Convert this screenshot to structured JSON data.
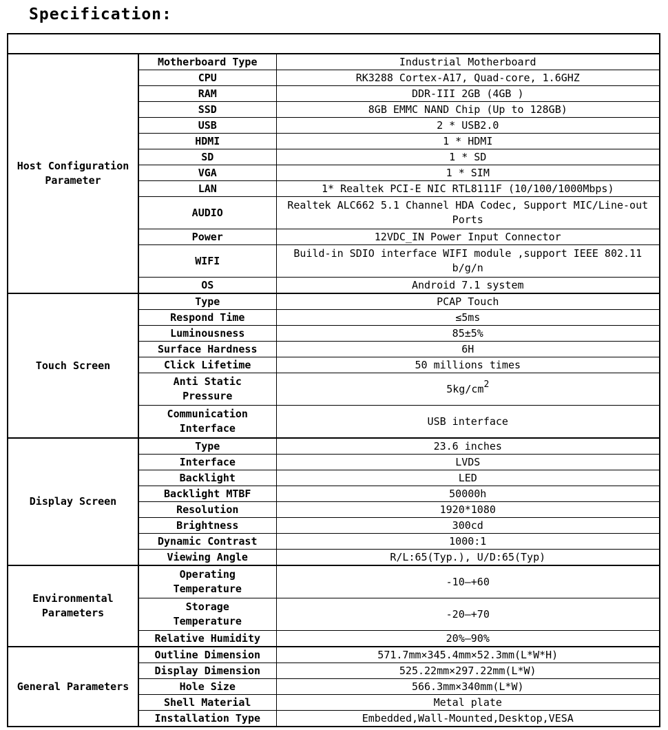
{
  "title": "Specification:",
  "table": {
    "top_row_text": "",
    "sections": [
      {
        "name": "Host Configuration\nParameter",
        "rows": [
          {
            "label": "Motherboard Type",
            "value": "Industrial Motherboard"
          },
          {
            "label": "CPU",
            "value": "RK3288 Cortex-A17, Quad-core, 1.6GHZ"
          },
          {
            "label": "RAM",
            "value": "DDR-III 2GB (4GB )"
          },
          {
            "label": "SSD",
            "value": "8GB EMMC NAND Chip (Up to 128GB)"
          },
          {
            "label": "USB",
            "value": "2 * USB2.0"
          },
          {
            "label": "HDMI",
            "value": "1 * HDMI"
          },
          {
            "label": "SD",
            "value": "1 * SD"
          },
          {
            "label": "VGA",
            "value": "1 * SIM"
          },
          {
            "label": "LAN",
            "value": "1* Realtek PCI-E NIC RTL8111F  (10/100/1000Mbps)"
          },
          {
            "label": "AUDIO",
            "value": "Realtek ALC662 5.1 Channel HDA Codec, Support MIC/Line-out\nPorts",
            "tall": true
          },
          {
            "label": "Power",
            "value": "12VDC_IN Power Input Connector"
          },
          {
            "label": "WIFI",
            "value": "Build-in SDIO interface WIFI module ,support IEEE 802.11\nb/g/n",
            "tall": true
          },
          {
            "label": "OS",
            "value": "Android 7.1 system"
          }
        ]
      },
      {
        "name": "Touch Screen",
        "rows": [
          {
            "label": "Type",
            "value": "PCAP Touch"
          },
          {
            "label": "Respond Time",
            "value": "≤5ms"
          },
          {
            "label": "Luminousness",
            "value": "85±5%"
          },
          {
            "label": "Surface Hardness",
            "value": "6H"
          },
          {
            "label": "Click Lifetime",
            "value": "50 millions times"
          },
          {
            "label": "Anti Static\nPressure",
            "value": "5kg/cm",
            "value_sup": "2",
            "tall": true
          },
          {
            "label": "Communication\nInterface",
            "value": "USB interface",
            "tall": true
          }
        ]
      },
      {
        "name": "Display Screen",
        "rows": [
          {
            "label": "Type",
            "value": "23.6 inches"
          },
          {
            "label": "Interface",
            "value": "LVDS"
          },
          {
            "label": "Backlight",
            "value": "LED"
          },
          {
            "label": "Backlight MTBF",
            "value": "50000h"
          },
          {
            "label": "Resolution",
            "value": "1920*1080"
          },
          {
            "label": "Brightness",
            "value": "300cd"
          },
          {
            "label": "Dynamic Contrast",
            "value": "1000:1"
          },
          {
            "label": "Viewing Angle",
            "value": "R/L:65(Typ.), U/D:65(Typ)"
          }
        ]
      },
      {
        "name": "Environmental\nParameters",
        "rows": [
          {
            "label": "Operating\nTemperature",
            "value": "-10—+60",
            "tall": true
          },
          {
            "label": "Storage\nTemperature",
            "value": "-20—+70",
            "tall": true
          },
          {
            "label": "Relative Humidity",
            "value": "20%—90%"
          }
        ]
      },
      {
        "name": "General Parameters",
        "rows": [
          {
            "label": "Outline Dimension",
            "value": "571.7mm×345.4mm×52.3mm(L*W*H)"
          },
          {
            "label": "Display Dimension",
            "value": "525.22mm×297.22mm(L*W)"
          },
          {
            "label": "Hole Size",
            "value": "566.3mm×340mm(L*W)"
          },
          {
            "label": "Shell Material",
            "value": "Metal plate"
          },
          {
            "label": "Installation Type",
            "value": "Embedded,Wall-Mounted,Desktop,VESA"
          }
        ]
      }
    ]
  },
  "colors": {
    "border": "#000000",
    "text": "#000000",
    "background": "#ffffff"
  }
}
